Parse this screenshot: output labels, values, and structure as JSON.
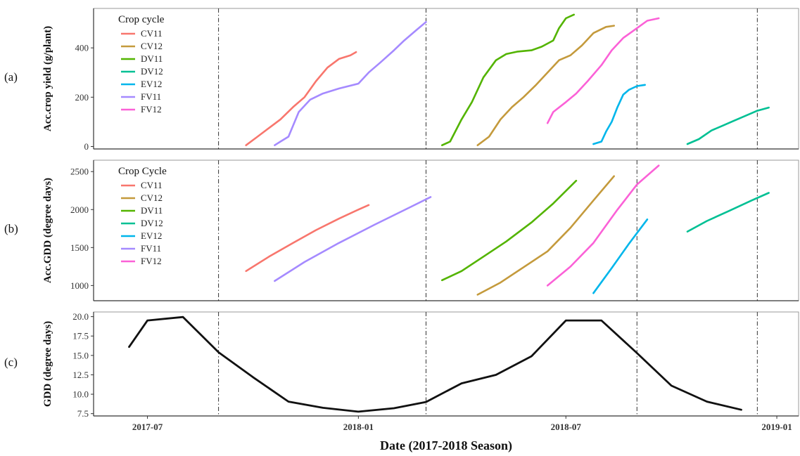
{
  "figure": {
    "xlabel": "Date (2017-2018 Season)",
    "x_ticks": [
      "2017-07",
      "2018-01",
      "2018-07",
      "2019-01"
    ],
    "vlines": [
      "2017-09-01",
      "2018-03-01",
      "2018-09-01",
      "2018-12-15"
    ]
  },
  "chart_data": [
    {
      "type": "line",
      "panel_label": "(a)",
      "ylabel": "Acc.crop yield (g/plant)",
      "ylim": [
        -10,
        560
      ],
      "y_ticks": [
        0,
        200,
        400
      ],
      "legend": {
        "title": "Crop cycle",
        "placement": "top-left"
      },
      "grid": false,
      "series": [
        {
          "name": "CV11",
          "color": "#F8766D",
          "points": [
            [
              "2017-09-25",
              5
            ],
            [
              "2017-10-05",
              40
            ],
            [
              "2017-10-15",
              75
            ],
            [
              "2017-10-25",
              110
            ],
            [
              "2017-11-05",
              160
            ],
            [
              "2017-11-15",
              200
            ],
            [
              "2017-11-25",
              265
            ],
            [
              "2017-12-05",
              320
            ],
            [
              "2017-12-15",
              355
            ],
            [
              "2017-12-25",
              370
            ],
            [
              "2017-12-30",
              383
            ]
          ]
        },
        {
          "name": "CV12",
          "color": "#C49A3C",
          "points": [
            [
              "2018-04-15",
              5
            ],
            [
              "2018-04-25",
              40
            ],
            [
              "2018-05-05",
              110
            ],
            [
              "2018-05-15",
              160
            ],
            [
              "2018-05-25",
              200
            ],
            [
              "2018-06-05",
              250
            ],
            [
              "2018-06-15",
              300
            ],
            [
              "2018-06-25",
              350
            ],
            [
              "2018-07-05",
              370
            ],
            [
              "2018-07-15",
              410
            ],
            [
              "2018-07-25",
              460
            ],
            [
              "2018-08-05",
              485
            ],
            [
              "2018-08-12",
              490
            ]
          ]
        },
        {
          "name": "DV11",
          "color": "#53B400",
          "points": [
            [
              "2018-03-15",
              5
            ],
            [
              "2018-03-22",
              20
            ],
            [
              "2018-04-01",
              110
            ],
            [
              "2018-04-10",
              180
            ],
            [
              "2018-04-20",
              280
            ],
            [
              "2018-05-01",
              350
            ],
            [
              "2018-05-10",
              375
            ],
            [
              "2018-05-20",
              385
            ],
            [
              "2018-06-01",
              390
            ],
            [
              "2018-06-10",
              405
            ],
            [
              "2018-06-20",
              430
            ],
            [
              "2018-06-25",
              480
            ],
            [
              "2018-07-01",
              520
            ],
            [
              "2018-07-08",
              535
            ]
          ]
        },
        {
          "name": "DV12",
          "color": "#00C094",
          "points": [
            [
              "2018-10-15",
              10
            ],
            [
              "2018-10-25",
              30
            ],
            [
              "2018-11-05",
              65
            ],
            [
              "2018-11-15",
              85
            ],
            [
              "2018-11-25",
              105
            ],
            [
              "2018-12-05",
              125
            ],
            [
              "2018-12-15",
              145
            ],
            [
              "2018-12-25",
              158
            ]
          ]
        },
        {
          "name": "EV12",
          "color": "#00B6EB",
          "points": [
            [
              "2018-07-25",
              10
            ],
            [
              "2018-08-01",
              20
            ],
            [
              "2018-08-05",
              60
            ],
            [
              "2018-08-10",
              100
            ],
            [
              "2018-08-15",
              160
            ],
            [
              "2018-08-20",
              210
            ],
            [
              "2018-08-25",
              230
            ],
            [
              "2018-09-01",
              245
            ],
            [
              "2018-09-08",
              250
            ]
          ]
        },
        {
          "name": "FV11",
          "color": "#A58AFF",
          "points": [
            [
              "2017-10-20",
              5
            ],
            [
              "2017-10-25",
              20
            ],
            [
              "2017-11-01",
              40
            ],
            [
              "2017-11-10",
              140
            ],
            [
              "2017-11-20",
              190
            ],
            [
              "2017-12-01",
              215
            ],
            [
              "2017-12-15",
              235
            ],
            [
              "2018-01-01",
              255
            ],
            [
              "2018-01-10",
              300
            ],
            [
              "2018-01-20",
              340
            ],
            [
              "2018-02-01",
              390
            ],
            [
              "2018-02-10",
              430
            ],
            [
              "2018-02-20",
              470
            ],
            [
              "2018-03-01",
              505
            ]
          ]
        },
        {
          "name": "FV12",
          "color": "#FB61D7",
          "points": [
            [
              "2018-06-15",
              95
            ],
            [
              "2018-06-20",
              140
            ],
            [
              "2018-07-01",
              180
            ],
            [
              "2018-07-10",
              215
            ],
            [
              "2018-07-20",
              265
            ],
            [
              "2018-08-01",
              330
            ],
            [
              "2018-08-10",
              390
            ],
            [
              "2018-08-20",
              440
            ],
            [
              "2018-09-01",
              480
            ],
            [
              "2018-09-10",
              510
            ],
            [
              "2018-09-20",
              520
            ]
          ]
        }
      ]
    },
    {
      "type": "line",
      "panel_label": "(b)",
      "ylabel": "Acc.GDD (degree days)",
      "ylim": [
        800,
        2650
      ],
      "y_ticks": [
        1000,
        1500,
        2000,
        2500
      ],
      "legend": {
        "title": "Crop Cycle",
        "placement": "top-left"
      },
      "grid": false,
      "series": [
        {
          "name": "CV11",
          "color": "#F8766D",
          "points": [
            [
              "2017-09-25",
              1190
            ],
            [
              "2017-10-15",
              1380
            ],
            [
              "2017-11-05",
              1560
            ],
            [
              "2017-11-25",
              1730
            ],
            [
              "2017-12-15",
              1880
            ],
            [
              "2018-01-01",
              2000
            ],
            [
              "2018-01-10",
              2060
            ]
          ]
        },
        {
          "name": "CV12",
          "color": "#C49A3C",
          "points": [
            [
              "2018-04-15",
              880
            ],
            [
              "2018-05-05",
              1040
            ],
            [
              "2018-05-25",
              1240
            ],
            [
              "2018-06-15",
              1450
            ],
            [
              "2018-07-05",
              1760
            ],
            [
              "2018-07-25",
              2120
            ],
            [
              "2018-08-12",
              2440
            ]
          ]
        },
        {
          "name": "DV11",
          "color": "#53B400",
          "points": [
            [
              "2018-03-15",
              1070
            ],
            [
              "2018-04-01",
              1190
            ],
            [
              "2018-04-20",
              1380
            ],
            [
              "2018-05-10",
              1580
            ],
            [
              "2018-06-01",
              1830
            ],
            [
              "2018-06-20",
              2080
            ],
            [
              "2018-07-10",
              2380
            ]
          ]
        },
        {
          "name": "DV12",
          "color": "#00C094",
          "points": [
            [
              "2018-10-15",
              1710
            ],
            [
              "2018-11-01",
              1850
            ],
            [
              "2018-11-20",
              1980
            ],
            [
              "2018-12-10",
              2120
            ],
            [
              "2018-12-25",
              2220
            ]
          ]
        },
        {
          "name": "EV12",
          "color": "#00B6EB",
          "points": [
            [
              "2018-07-25",
              900
            ],
            [
              "2018-08-10",
              1230
            ],
            [
              "2018-08-25",
              1550
            ],
            [
              "2018-09-10",
              1870
            ]
          ]
        },
        {
          "name": "FV11",
          "color": "#A58AFF",
          "points": [
            [
              "2017-10-20",
              1060
            ],
            [
              "2017-11-15",
              1310
            ],
            [
              "2017-12-15",
              1560
            ],
            [
              "2018-01-15",
              1800
            ],
            [
              "2018-02-15",
              2030
            ],
            [
              "2018-03-05",
              2165
            ]
          ]
        },
        {
          "name": "FV12",
          "color": "#FB61D7",
          "points": [
            [
              "2018-06-15",
              1000
            ],
            [
              "2018-07-05",
              1250
            ],
            [
              "2018-07-25",
              1560
            ],
            [
              "2018-08-15",
              2000
            ],
            [
              "2018-09-01",
              2330
            ],
            [
              "2018-09-20",
              2580
            ]
          ]
        }
      ]
    },
    {
      "type": "line",
      "panel_label": "(c)",
      "ylabel": "GDD (degree days)",
      "ylim": [
        7.2,
        20.6
      ],
      "y_ticks": [
        "7.5",
        "10.0",
        "12.5",
        "15.0",
        "17.5",
        "20.0"
      ],
      "grid": false,
      "series": [
        {
          "name": "",
          "color": "#111111",
          "points": [
            [
              "2017-06-15",
              16.1
            ],
            [
              "2017-07-01",
              19.5
            ],
            [
              "2017-08-01",
              19.95
            ],
            [
              "2017-09-01",
              15.4
            ],
            [
              "2017-10-01",
              12.2
            ],
            [
              "2017-11-01",
              9.05
            ],
            [
              "2017-12-01",
              8.25
            ],
            [
              "2018-01-01",
              7.75
            ],
            [
              "2018-02-01",
              8.2
            ],
            [
              "2018-03-01",
              9.0
            ],
            [
              "2018-04-01",
              11.4
            ],
            [
              "2018-05-01",
              12.5
            ],
            [
              "2018-06-01",
              14.9
            ],
            [
              "2018-07-01",
              19.5
            ],
            [
              "2018-08-01",
              19.5
            ],
            [
              "2018-09-01",
              15.3
            ],
            [
              "2018-10-01",
              11.1
            ],
            [
              "2018-11-01",
              9.05
            ],
            [
              "2018-12-01",
              8.0
            ]
          ]
        }
      ]
    }
  ]
}
